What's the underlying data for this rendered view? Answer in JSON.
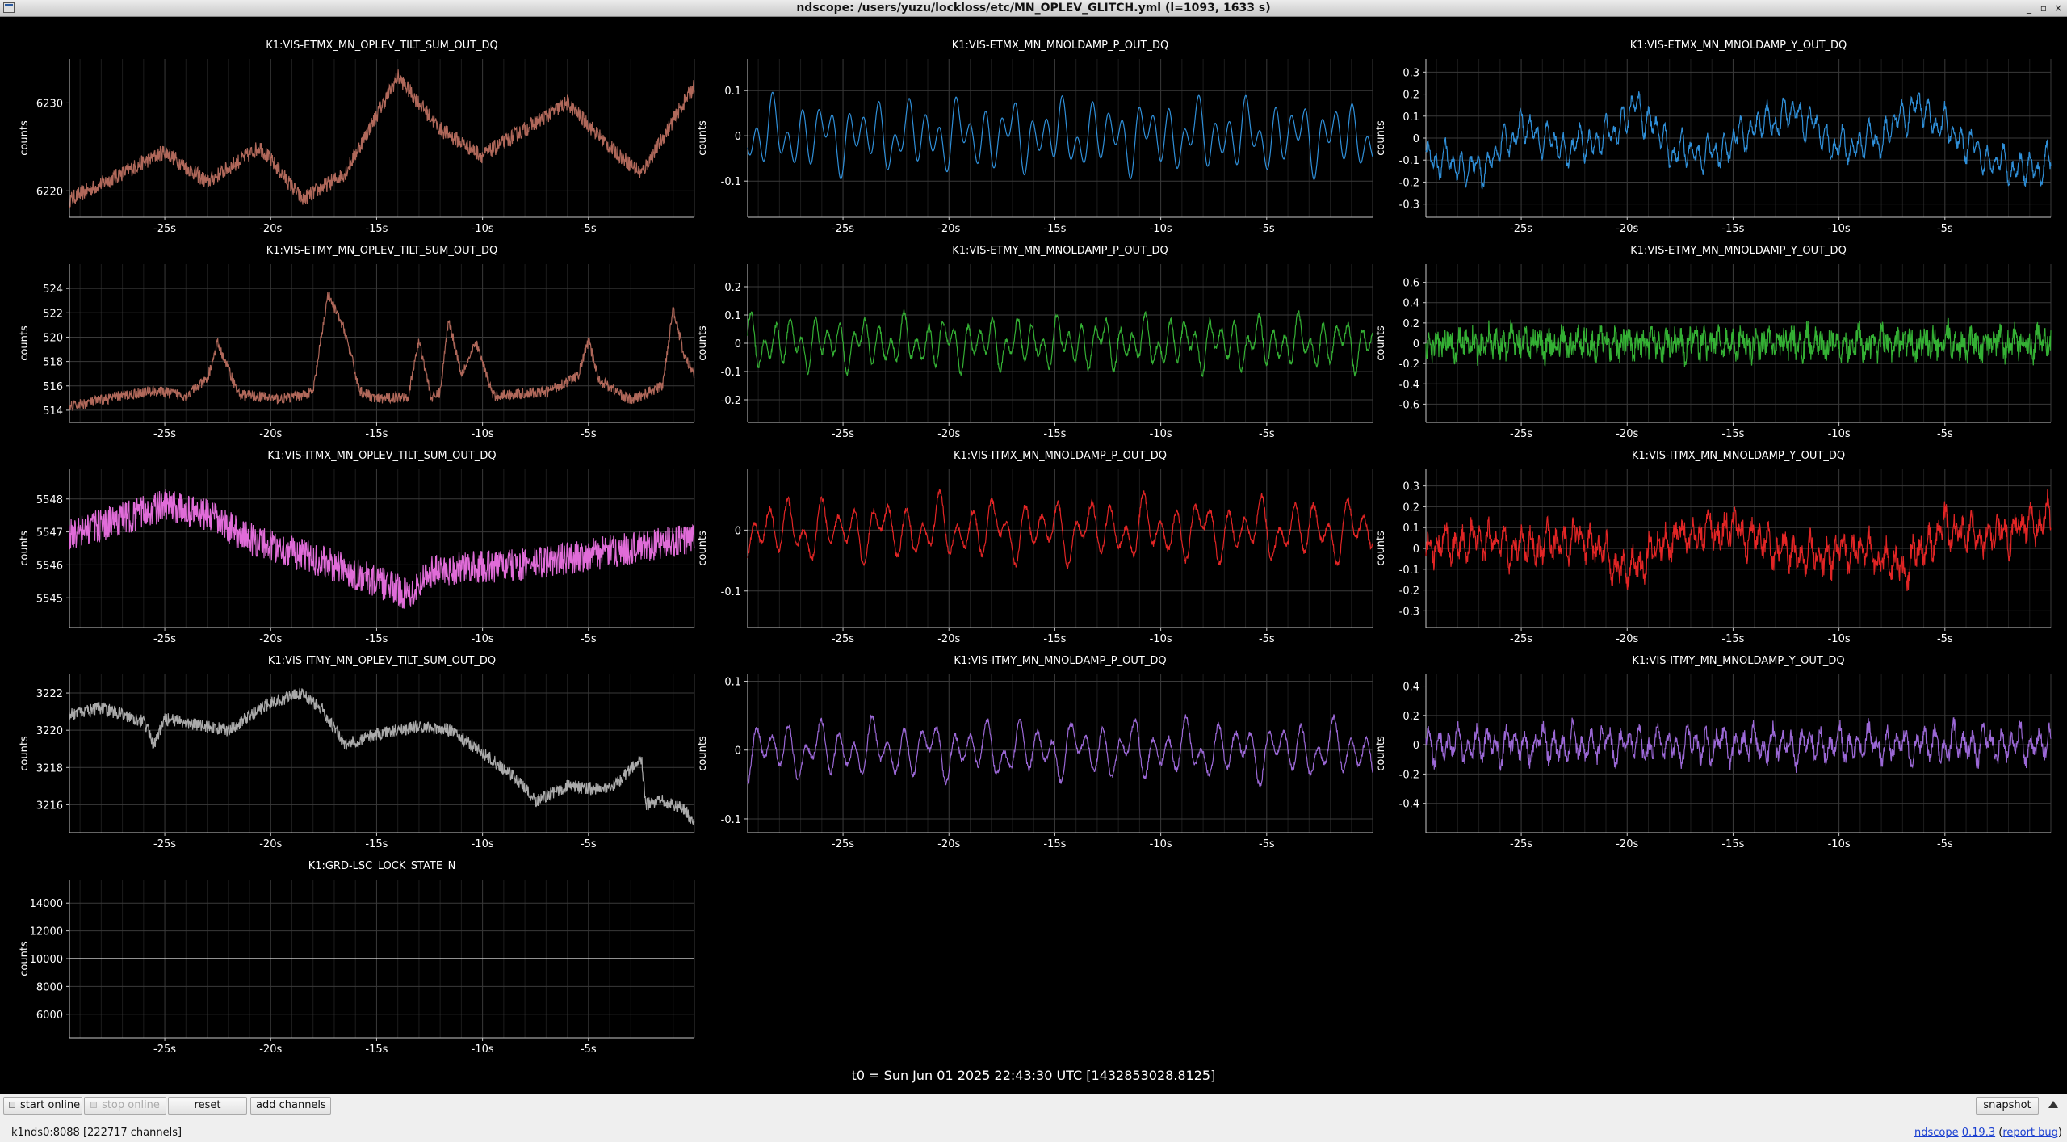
{
  "window": {
    "title": "ndscope: /users/yuzu/lockloss/etc/MN_OPLEV_GLITCH.yml (l=1093, 1633 s)",
    "controls": [
      "_",
      "▫",
      "×"
    ]
  },
  "t0_label": "t0 = Sun Jun 01 2025 22:43:30 UTC [1432853028.8125]",
  "toolbar": {
    "start_online": "start online",
    "stop_online": "stop online",
    "reset": "reset",
    "add_channels": "add channels",
    "snapshot": "snapshot"
  },
  "status": {
    "server": "k1nds0:8088",
    "channel_count": "[222717 channels]",
    "app": "ndscope",
    "version": "0.19.3",
    "report_bug": "report bug"
  },
  "colors": {
    "background": "#000000",
    "grid": "#3a3a3a",
    "brown": "#b0685a",
    "blue": "#2f8fd8",
    "green": "#34b034",
    "pink": "#e06cd8",
    "gray": "#aaaaaa",
    "red": "#e22525",
    "purple": "#9b68d6",
    "white": "#e8e8e8"
  },
  "chart_data": [
    {
      "type": "line",
      "title": "K1:VIS-ETMX_MN_OPLEV_TILT_SUM_OUT_DQ",
      "ylabel": "counts",
      "xticks": [
        "-25s",
        "-20s",
        "-15s",
        "-10s",
        "-5s"
      ],
      "xlim": [
        -29.5,
        0
      ],
      "ylim": [
        6217,
        6235
      ],
      "yticks": [
        6220,
        6230
      ],
      "color": "brown",
      "noise": 0.9,
      "series": [
        {
          "x": [
            -29.5,
            -27,
            -25,
            -23,
            -20.5,
            -18.5,
            -16.5,
            -14,
            -12,
            -10,
            -8,
            -6,
            -4,
            -2.5,
            -1,
            0
          ],
          "y": [
            6219,
            6222,
            6224.5,
            6221,
            6225,
            6219,
            6222,
            6233,
            6227,
            6224,
            6227,
            6230,
            6225,
            6222,
            6228,
            6232
          ]
        }
      ]
    },
    {
      "type": "line",
      "title": "K1:VIS-ETMX_MN_MNOLDAMP_P_OUT_DQ",
      "ylabel": "counts",
      "xticks": [
        "-25s",
        "-20s",
        "-15s",
        "-10s",
        "-5s"
      ],
      "xlim": [
        -29.5,
        0
      ],
      "ylim": [
        -0.18,
        0.17
      ],
      "yticks": [
        "0.1",
        "0",
        "-0.1"
      ],
      "ytickvals": [
        0.1,
        0,
        -0.1
      ],
      "color": "blue",
      "noise": 0,
      "osc": {
        "amp": 0.085,
        "period": 0.72
      },
      "series": [
        {
          "x": [
            -29.5,
            0
          ],
          "y": [
            0,
            0
          ]
        }
      ]
    },
    {
      "type": "line",
      "title": "K1:VIS-ETMX_MN_MNOLDAMP_Y_OUT_DQ",
      "ylabel": "counts",
      "xticks": [
        "-25s",
        "-20s",
        "-15s",
        "-10s",
        "-5s"
      ],
      "xlim": [
        -29.5,
        0
      ],
      "ylim": [
        -0.36,
        0.36
      ],
      "yticks": [
        "0.3",
        "0.2",
        "0.1",
        "0",
        "-0.1",
        "-0.2",
        "-0.3"
      ],
      "ytickvals": [
        0.3,
        0.2,
        0.1,
        0,
        -0.1,
        -0.2,
        -0.3
      ],
      "color": "blue",
      "noise": 0.02,
      "osc": {
        "amp": 0.09,
        "period": 0.4
      },
      "series": [
        {
          "x": [
            -29.5,
            -27,
            -25,
            -23,
            -21,
            -19.5,
            -18,
            -16,
            -14,
            -12,
            -10,
            -8,
            -6.5,
            -5,
            -3,
            -1,
            0
          ],
          "y": [
            -0.08,
            -0.15,
            0.05,
            -0.05,
            0.0,
            0.15,
            -0.05,
            -0.08,
            0.05,
            0.12,
            -0.05,
            0.0,
            0.15,
            0.05,
            -0.1,
            -0.15,
            -0.1
          ]
        }
      ]
    },
    {
      "type": "line",
      "title": "K1:VIS-ETMY_MN_OPLEV_TILT_SUM_OUT_DQ",
      "ylabel": "counts",
      "xticks": [
        "-25s",
        "-20s",
        "-15s",
        "-10s",
        "-5s"
      ],
      "xlim": [
        -29.5,
        0
      ],
      "ylim": [
        513,
        526
      ],
      "yticks": [
        "524",
        "522",
        "520",
        "518",
        "516",
        "514"
      ],
      "ytickvals": [
        524,
        522,
        520,
        518,
        516,
        514
      ],
      "color": "brown",
      "noise": 0.45,
      "series": [
        {
          "x": [
            -29.5,
            -27,
            -25.5,
            -24,
            -23,
            -22.5,
            -21.5,
            -19.5,
            -18,
            -17.3,
            -16.5,
            -15.8,
            -15,
            -13.5,
            -13,
            -12.4,
            -12,
            -11.6,
            -11,
            -10.3,
            -9.5,
            -7,
            -5.5,
            -5,
            -4.5,
            -3,
            -1.5,
            -1,
            -0.5,
            0
          ],
          "y": [
            514.3,
            515.2,
            515.6,
            515.2,
            516.5,
            519.5,
            515.3,
            514.9,
            515.5,
            523.5,
            520.5,
            515.6,
            514.9,
            515.2,
            519.8,
            514.9,
            515.5,
            521.5,
            517,
            519.5,
            515.2,
            515.5,
            516.8,
            519.7,
            516.5,
            514.8,
            516,
            522.5,
            518.5,
            517
          ]
        }
      ]
    },
    {
      "type": "line",
      "title": "K1:VIS-ETMY_MN_MNOLDAMP_P_OUT_DQ",
      "ylabel": "counts",
      "xticks": [
        "-25s",
        "-20s",
        "-15s",
        "-10s",
        "-5s"
      ],
      "xlim": [
        -29.5,
        0
      ],
      "ylim": [
        -0.28,
        0.28
      ],
      "yticks": [
        "0.2",
        "0.1",
        "0",
        "-0.1",
        "-0.2"
      ],
      "ytickvals": [
        0.2,
        0.1,
        0,
        -0.1,
        -0.2
      ],
      "color": "green",
      "noise": 0.01,
      "osc": {
        "amp": 0.1,
        "period": 0.6
      },
      "series": [
        {
          "x": [
            -29.5,
            0
          ],
          "y": [
            0,
            0
          ]
        }
      ]
    },
    {
      "type": "line",
      "title": "K1:VIS-ETMY_MN_MNOLDAMP_Y_OUT_DQ",
      "ylabel": "counts",
      "xticks": [
        "-25s",
        "-20s",
        "-15s",
        "-10s",
        "-5s"
      ],
      "xlim": [
        -29.5,
        0
      ],
      "ylim": [
        -0.78,
        0.78
      ],
      "yticks": [
        "0.6",
        "0.4",
        "0.2",
        "0",
        "-0.2",
        "-0.4",
        "-0.6"
      ],
      "ytickvals": [
        0.6,
        0.4,
        0.2,
        0,
        -0.2,
        -0.4,
        -0.6
      ],
      "color": "green",
      "noise": 0.12,
      "osc": {
        "amp": 0.12,
        "period": 0.35
      },
      "series": [
        {
          "x": [
            -29.5,
            0
          ],
          "y": [
            0,
            0
          ]
        }
      ]
    },
    {
      "type": "line",
      "title": "K1:VIS-ITMX_MN_OPLEV_TILT_SUM_OUT_DQ",
      "ylabel": "counts",
      "xticks": [
        "-25s",
        "-20s",
        "-15s",
        "-10s",
        "-5s"
      ],
      "xlim": [
        -29.5,
        0
      ],
      "ylim": [
        5544.1,
        5548.9
      ],
      "yticks": [
        "5548",
        "5547",
        "5546",
        "5545"
      ],
      "ytickvals": [
        5548,
        5547,
        5546,
        5545
      ],
      "color": "pink",
      "noise": 0.5,
      "series": [
        {
          "x": [
            -29.5,
            -27,
            -25,
            -23,
            -21,
            -18,
            -15,
            -13.5,
            -12.5,
            -11,
            -8,
            -5,
            -2,
            0
          ],
          "y": [
            5546.9,
            5547.4,
            5547.8,
            5547.5,
            5546.8,
            5546.2,
            5545.5,
            5545.1,
            5545.8,
            5545.9,
            5546.0,
            5546.3,
            5546.6,
            5546.8
          ]
        }
      ]
    },
    {
      "type": "line",
      "title": "K1:VIS-ITMX_MN_MNOLDAMP_P_OUT_DQ",
      "ylabel": "counts",
      "xticks": [
        "-25s",
        "-20s",
        "-15s",
        "-10s",
        "-5s"
      ],
      "xlim": [
        -29.5,
        0
      ],
      "ylim": [
        -0.16,
        0.1
      ],
      "yticks": [
        "0",
        "-0.1"
      ],
      "ytickvals": [
        0,
        -0.1
      ],
      "color": "red",
      "noise": 0.005,
      "osc": {
        "amp": 0.055,
        "period": 0.8
      },
      "series": [
        {
          "x": [
            -29.5,
            0
          ],
          "y": [
            0,
            0
          ]
        }
      ]
    },
    {
      "type": "line",
      "title": "K1:VIS-ITMX_MN_MNOLDAMP_Y_OUT_DQ",
      "ylabel": "counts",
      "xticks": [
        "-25s",
        "-20s",
        "-15s",
        "-10s",
        "-5s"
      ],
      "xlim": [
        -29.5,
        0
      ],
      "ylim": [
        -0.38,
        0.38
      ],
      "yticks": [
        "0.3",
        "0.2",
        "0.1",
        "0",
        "-0.1",
        "-0.2",
        "-0.3"
      ],
      "ytickvals": [
        0.3,
        0.2,
        0.1,
        0,
        -0.1,
        -0.2,
        -0.3
      ],
      "color": "red",
      "noise": 0.05,
      "osc": {
        "amp": 0.09,
        "period": 0.4
      },
      "series": [
        {
          "x": [
            -29.5,
            -27,
            -25,
            -22,
            -20,
            -18,
            -15,
            -13,
            -11,
            -9,
            -7,
            -5,
            -3,
            -1,
            0
          ],
          "y": [
            0,
            0.05,
            0.0,
            0.05,
            -0.12,
            0.05,
            0.1,
            0.0,
            -0.05,
            0.0,
            -0.1,
            0.1,
            0.05,
            0.12,
            0.15
          ]
        }
      ]
    },
    {
      "type": "line",
      "title": "K1:VIS-ITMY_MN_OPLEV_TILT_SUM_OUT_DQ",
      "ylabel": "counts",
      "xticks": [
        "-25s",
        "-20s",
        "-15s",
        "-10s",
        "-5s"
      ],
      "xlim": [
        -29.5,
        0
      ],
      "ylim": [
        3214.5,
        3223
      ],
      "yticks": [
        "3222",
        "3220",
        "3218",
        "3216"
      ],
      "ytickvals": [
        3222,
        3220,
        3218,
        3216
      ],
      "color": "gray",
      "noise": 0.35,
      "series": [
        {
          "x": [
            -29.5,
            -28,
            -26,
            -25.5,
            -25,
            -24,
            -22,
            -20,
            -18.5,
            -17.5,
            -16.5,
            -15,
            -13,
            -11.5,
            -10,
            -8.5,
            -7.5,
            -6,
            -4,
            -2.5,
            -2.3,
            -1.5,
            -0.5,
            0
          ],
          "y": [
            3220.8,
            3221.2,
            3220.5,
            3219.2,
            3220.6,
            3220.4,
            3220,
            3221.5,
            3222,
            3221,
            3219.2,
            3219.8,
            3220.2,
            3220,
            3218.8,
            3217.5,
            3216.2,
            3217,
            3216.8,
            3218.5,
            3216,
            3216.2,
            3215.8,
            3215
          ]
        }
      ]
    },
    {
      "type": "line",
      "title": "K1:VIS-ITMY_MN_MNOLDAMP_P_OUT_DQ",
      "ylabel": "counts",
      "xticks": [
        "-25s",
        "-20s",
        "-15s",
        "-10s",
        "-5s"
      ],
      "xlim": [
        -29.5,
        0
      ],
      "ylim": [
        -0.12,
        0.11
      ],
      "yticks": [
        "0.1",
        "0",
        "-0.1"
      ],
      "ytickvals": [
        0.1,
        0,
        -0.1
      ],
      "color": "purple",
      "noise": 0.004,
      "osc": {
        "amp": 0.045,
        "period": 0.78
      },
      "series": [
        {
          "x": [
            -29.5,
            0
          ],
          "y": [
            0,
            0
          ]
        }
      ]
    },
    {
      "type": "line",
      "title": "K1:VIS-ITMY_MN_MNOLDAMP_Y_OUT_DQ",
      "ylabel": "counts",
      "xticks": [
        "-25s",
        "-20s",
        "-15s",
        "-10s",
        "-5s"
      ],
      "xlim": [
        -29.5,
        0
      ],
      "ylim": [
        -0.6,
        0.48
      ],
      "yticks": [
        "0.4",
        "0.2",
        "0",
        "-0.2",
        "-0.4"
      ],
      "ytickvals": [
        0.4,
        0.2,
        0,
        -0.2,
        -0.4
      ],
      "color": "purple",
      "noise": 0.05,
      "osc": {
        "amp": 0.13,
        "period": 0.45
      },
      "series": [
        {
          "x": [
            -29.5,
            0
          ],
          "y": [
            0,
            0
          ]
        }
      ]
    },
    {
      "type": "line",
      "title": "K1:GRD-LSC_LOCK_STATE_N",
      "ylabel": "counts",
      "xticks": [
        "-25s",
        "-20s",
        "-15s",
        "-10s",
        "-5s"
      ],
      "xlim": [
        -29.5,
        0
      ],
      "ylim": [
        4300,
        15700
      ],
      "yticks": [
        "14000",
        "12000",
        "10000",
        "8000",
        "6000"
      ],
      "ytickvals": [
        14000,
        12000,
        10000,
        8000,
        6000
      ],
      "color": "white",
      "noise": 0,
      "series": [
        {
          "x": [
            -29.5,
            0
          ],
          "y": [
            10000,
            10000
          ]
        }
      ]
    }
  ]
}
